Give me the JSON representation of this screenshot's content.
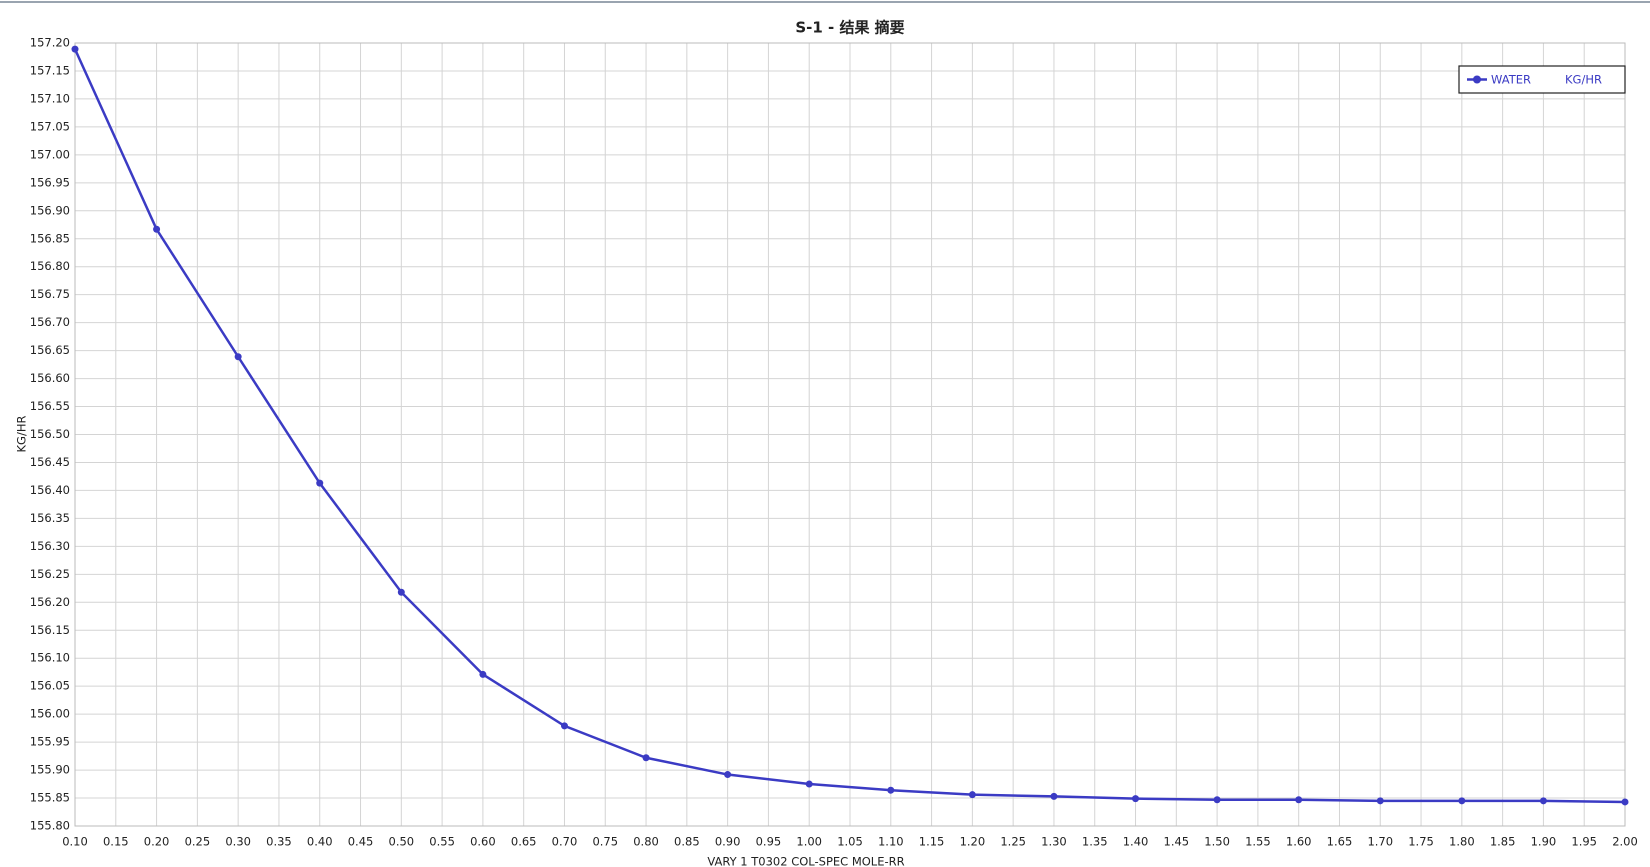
{
  "chart_data": {
    "type": "line",
    "title": "S-1 - 结果 摘要",
    "x_label": "VARY   1 T0302    COL-SPEC MOLE-RR",
    "y_label": "KG/HR",
    "x": [
      0.1,
      0.2,
      0.3,
      0.4,
      0.5,
      0.6,
      0.7,
      0.8,
      0.9,
      1.0,
      1.1,
      1.2,
      1.3,
      1.4,
      1.5,
      1.6,
      1.7,
      1.8,
      1.9,
      2.0
    ],
    "series": [
      {
        "name": "WATER",
        "unit": "KG/HR",
        "color": "#3b3bc4",
        "values": [
          157.189,
          156.867,
          156.639,
          156.413,
          156.218,
          156.071,
          155.979,
          155.922,
          155.892,
          155.875,
          155.864,
          155.856,
          155.853,
          155.849,
          155.847,
          155.847,
          155.845,
          155.845,
          155.845,
          155.843
        ]
      }
    ],
    "xlim": [
      0.1,
      2.0
    ],
    "xticks": [
      {
        "value": 0.1,
        "label": "0.10"
      },
      {
        "value": 0.15,
        "label": "0.15"
      },
      {
        "value": 0.2,
        "label": "0.20"
      },
      {
        "value": 0.25,
        "label": "0.25"
      },
      {
        "value": 0.3,
        "label": "0.30"
      },
      {
        "value": 0.35,
        "label": "0.35"
      },
      {
        "value": 0.4,
        "label": "0.40"
      },
      {
        "value": 0.45,
        "label": "0.45"
      },
      {
        "value": 0.5,
        "label": "0.50"
      },
      {
        "value": 0.55,
        "label": "0.55"
      },
      {
        "value": 0.6,
        "label": "0.60"
      },
      {
        "value": 0.65,
        "label": "0.65"
      },
      {
        "value": 0.7,
        "label": "0.70"
      },
      {
        "value": 0.75,
        "label": "0.75"
      },
      {
        "value": 0.8,
        "label": "0.80"
      },
      {
        "value": 0.85,
        "label": "0.85"
      },
      {
        "value": 0.9,
        "label": "0.90"
      },
      {
        "value": 0.95,
        "label": "0.95"
      },
      {
        "value": 1.0,
        "label": "1.00"
      },
      {
        "value": 1.05,
        "label": "1.05"
      },
      {
        "value": 1.1,
        "label": "1.10"
      },
      {
        "value": 1.15,
        "label": "1.15"
      },
      {
        "value": 1.2,
        "label": "1.20"
      },
      {
        "value": 1.25,
        "label": "1.25"
      },
      {
        "value": 1.3,
        "label": "1.30"
      },
      {
        "value": 1.35,
        "label": "1.35"
      },
      {
        "value": 1.4,
        "label": "1.40"
      },
      {
        "value": 1.45,
        "label": "1.45"
      },
      {
        "value": 1.5,
        "label": "1.50"
      },
      {
        "value": 1.55,
        "label": "1.55"
      },
      {
        "value": 1.6,
        "label": "1.60"
      },
      {
        "value": 1.65,
        "label": "1.65"
      },
      {
        "value": 1.7,
        "label": "1.70"
      },
      {
        "value": 1.75,
        "label": "1.75"
      },
      {
        "value": 1.8,
        "label": "1.80"
      },
      {
        "value": 1.85,
        "label": "1.85"
      },
      {
        "value": 1.9,
        "label": "1.90"
      },
      {
        "value": 1.95,
        "label": "1.95"
      },
      {
        "value": 2.0,
        "label": "2.00"
      }
    ],
    "ylim": [
      155.8,
      157.2
    ],
    "yticks": [
      {
        "value": 155.8,
        "label": "155.80"
      },
      {
        "value": 155.85,
        "label": "155.85"
      },
      {
        "value": 155.9,
        "label": "155.90"
      },
      {
        "value": 155.95,
        "label": "155.95"
      },
      {
        "value": 156.0,
        "label": "156.00"
      },
      {
        "value": 156.05,
        "label": "156.05"
      },
      {
        "value": 156.1,
        "label": "156.10"
      },
      {
        "value": 156.15,
        "label": "156.15"
      },
      {
        "value": 156.2,
        "label": "156.20"
      },
      {
        "value": 156.25,
        "label": "156.25"
      },
      {
        "value": 156.3,
        "label": "156.30"
      },
      {
        "value": 156.35,
        "label": "156.35"
      },
      {
        "value": 156.4,
        "label": "156.40"
      },
      {
        "value": 156.45,
        "label": "156.45"
      },
      {
        "value": 156.5,
        "label": "156.50"
      },
      {
        "value": 156.55,
        "label": "156.55"
      },
      {
        "value": 156.6,
        "label": "156.60"
      },
      {
        "value": 156.65,
        "label": "156.65"
      },
      {
        "value": 156.7,
        "label": "156.70"
      },
      {
        "value": 156.75,
        "label": "156.75"
      },
      {
        "value": 156.8,
        "label": "156.80"
      },
      {
        "value": 156.85,
        "label": "156.85"
      },
      {
        "value": 156.9,
        "label": "156.90"
      },
      {
        "value": 156.95,
        "label": "156.95"
      },
      {
        "value": 157.0,
        "label": "157.00"
      },
      {
        "value": 157.05,
        "label": "157.05"
      },
      {
        "value": 157.1,
        "label": "157.10"
      },
      {
        "value": 157.15,
        "label": "157.15"
      },
      {
        "value": 157.2,
        "label": "157.20"
      }
    ],
    "grid": true,
    "legend": "upper right"
  }
}
